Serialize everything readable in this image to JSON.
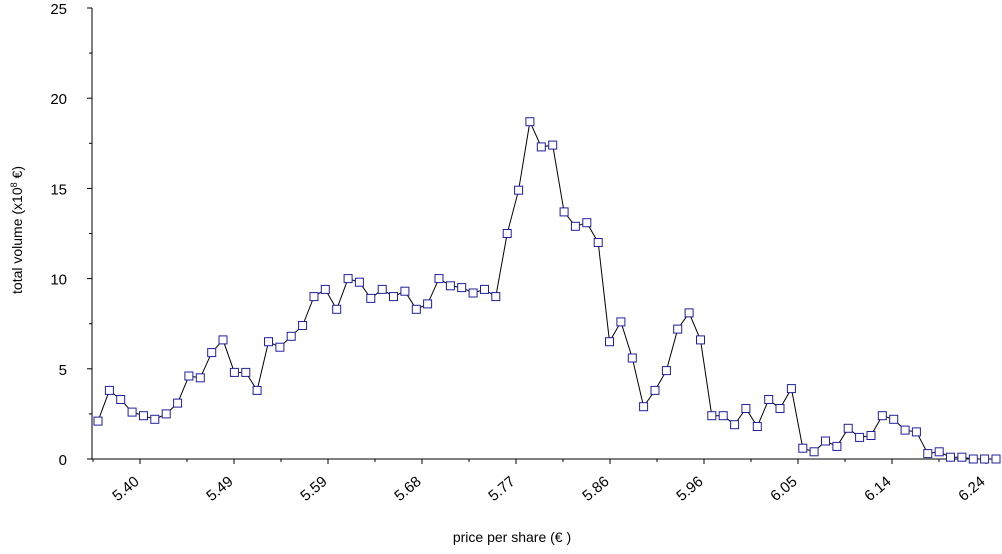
{
  "chart_data": {
    "type": "line",
    "title": "",
    "xlabel": "price per share (€ )",
    "ylabel": "total volume (x10",
    "ylabel_sup": "8",
    "ylabel_suffix": " €)",
    "ylim": [
      0,
      25
    ],
    "y_ticks": [
      0,
      5,
      10,
      15,
      20,
      25
    ],
    "x_ticks": [
      "5.40",
      "5.49",
      "5.59",
      "5.68",
      "5.77",
      "5.86",
      "5.96",
      "6.05",
      "6.14",
      "6.24"
    ],
    "grid": false,
    "legend": "none",
    "marker": "hollow-square",
    "colors": {
      "line": "#000000",
      "marker": "#1f1fa0"
    },
    "series": [
      {
        "values": [
          2.1,
          3.8,
          3.3,
          2.6,
          2.4,
          2.2,
          2.5,
          3.1,
          4.6,
          4.5,
          5.9,
          6.6,
          4.8,
          4.8,
          3.8,
          6.5,
          6.2,
          6.8,
          7.4,
          9.0,
          9.4,
          8.3,
          10.0,
          9.8,
          8.9,
          9.4,
          9.0,
          9.3,
          8.3,
          8.6,
          10.0,
          9.6,
          9.5,
          9.2,
          9.4,
          9.0,
          12.5,
          14.9,
          18.7,
          17.3,
          17.4,
          13.7,
          12.9,
          13.1,
          12.0,
          6.5,
          7.6,
          5.6,
          2.9,
          3.8,
          4.9,
          7.2,
          8.1,
          6.6,
          2.4,
          2.4,
          1.9,
          2.8,
          1.8,
          3.3,
          2.8,
          3.9,
          0.6,
          0.4,
          1.0,
          0.7,
          1.7,
          1.2,
          1.3,
          2.4,
          2.2,
          1.6,
          1.5,
          0.3,
          0.4,
          0.1,
          0.1,
          0.0,
          0.0,
          0.0
        ]
      }
    ]
  }
}
